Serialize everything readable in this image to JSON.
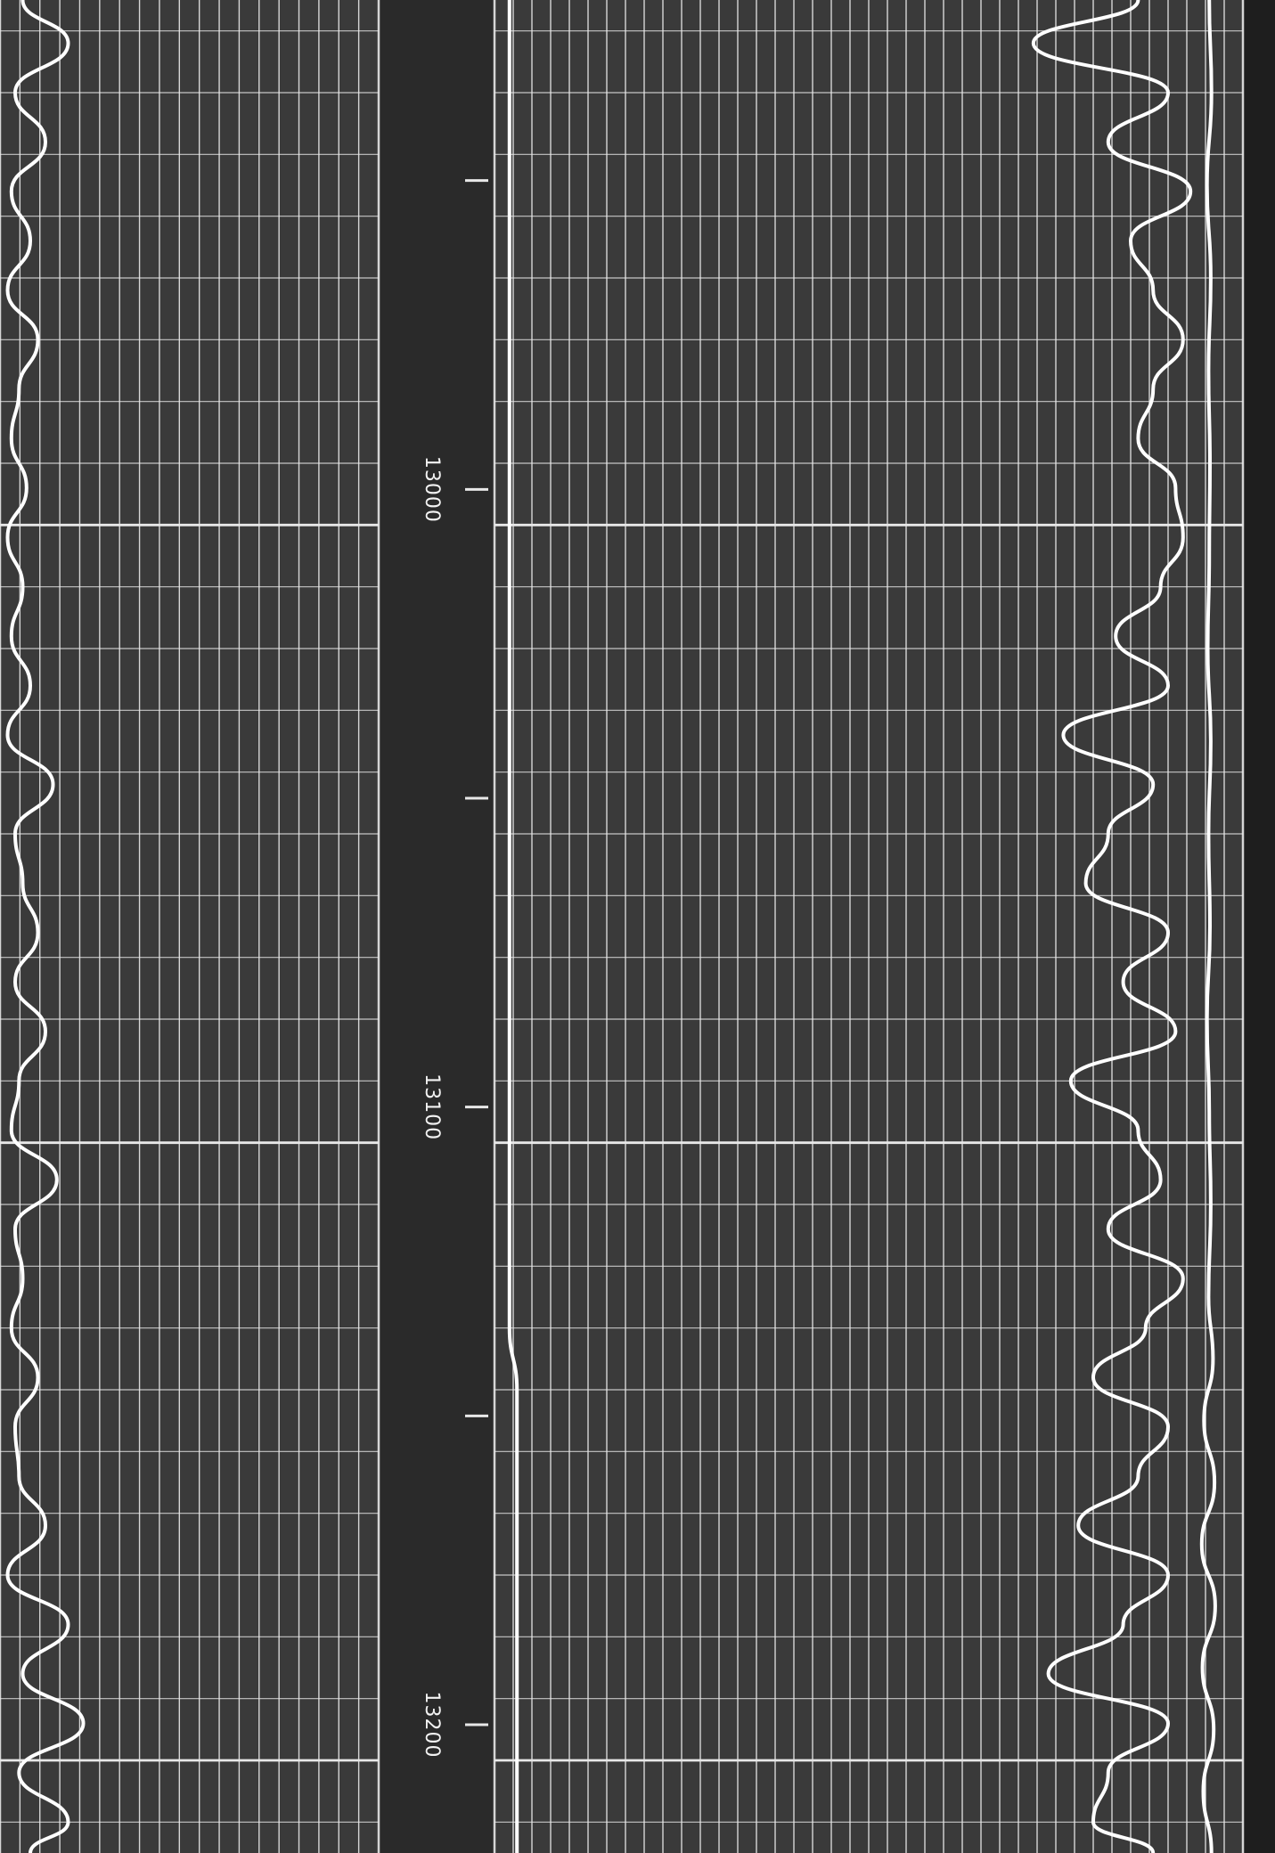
{
  "chart_data": {
    "type": "line",
    "title": "",
    "depth_axis": {
      "orientation": "vertical",
      "range": [
        12915,
        13215
      ],
      "tick_labels": [
        "13000",
        "13100",
        "13200"
      ],
      "major_interval": 100,
      "tick_interval": 50
    },
    "grid": true,
    "colors": {
      "background": "#3a3a3a",
      "grid": "#e8e8e8",
      "curve": "#ffffff",
      "depth_track": "#2a2a2a"
    },
    "tracks": [
      {
        "id": "track-1",
        "series": [
          {
            "depth": [
              12915,
              12922,
              12930,
              12938,
              12946,
              12954,
              12962,
              12970,
              12978,
              12986,
              12994,
              13002,
              13010,
              13018,
              13026,
              13034,
              13042,
              13050,
              13058,
              13066,
              13074,
              13082,
              13090,
              13098,
              13106,
              13114,
              13122,
              13130,
              13138,
              13146,
              13154,
              13162,
              13170,
              13178,
              13186,
              13194,
              13202,
              13210,
              13215
            ],
            "value": [
              0.06,
              0.18,
              0.04,
              0.12,
              0.03,
              0.08,
              0.02,
              0.1,
              0.05,
              0.03,
              0.07,
              0.02,
              0.06,
              0.03,
              0.08,
              0.02,
              0.14,
              0.04,
              0.06,
              0.1,
              0.04,
              0.12,
              0.05,
              0.03,
              0.15,
              0.04,
              0.06,
              0.03,
              0.1,
              0.04,
              0.05,
              0.12,
              0.02,
              0.18,
              0.06,
              0.22,
              0.05,
              0.18,
              0.08
            ]
          }
        ]
      },
      {
        "id": "track-2",
        "series": [
          {
            "depth": [
              12915,
              13130,
              13140,
              13215
            ],
            "value": [
              0.02,
              0.02,
              0.03,
              0.03
            ]
          },
          {
            "depth": [
              12915,
              12922,
              12930,
              12938,
              12946,
              12954,
              12962,
              12970,
              12978,
              12986,
              12994,
              13002,
              13010,
              13018,
              13026,
              13034,
              13042,
              13050,
              13058,
              13066,
              13074,
              13082,
              13090,
              13098,
              13106,
              13114,
              13122,
              13130,
              13138,
              13146,
              13154,
              13162,
              13170,
              13178,
              13186,
              13194,
              13202,
              13210,
              13215
            ],
            "value": [
              0.86,
              0.72,
              0.9,
              0.82,
              0.93,
              0.85,
              0.88,
              0.92,
              0.88,
              0.86,
              0.91,
              0.92,
              0.89,
              0.83,
              0.9,
              0.76,
              0.88,
              0.82,
              0.79,
              0.9,
              0.84,
              0.91,
              0.77,
              0.86,
              0.89,
              0.82,
              0.92,
              0.87,
              0.8,
              0.9,
              0.86,
              0.78,
              0.9,
              0.84,
              0.74,
              0.9,
              0.82,
              0.8,
              0.88
            ]
          },
          {
            "depth": [
              12915,
              12930,
              12945,
              12960,
              12975,
              12990,
              13005,
              13020,
              13035,
              13050,
              13065,
              13080,
              13095,
              13110,
              13125,
              13135,
              13145,
              13155,
              13165,
              13175,
              13185,
              13195,
              13205,
              13215
            ],
            "value": [
              0.955,
              0.958,
              0.952,
              0.957,
              0.954,
              0.956,
              0.955,
              0.953,
              0.957,
              0.954,
              0.956,
              0.952,
              0.955,
              0.957,
              0.954,
              0.96,
              0.948,
              0.962,
              0.945,
              0.963,
              0.946,
              0.961,
              0.947,
              0.958
            ]
          }
        ]
      }
    ]
  }
}
